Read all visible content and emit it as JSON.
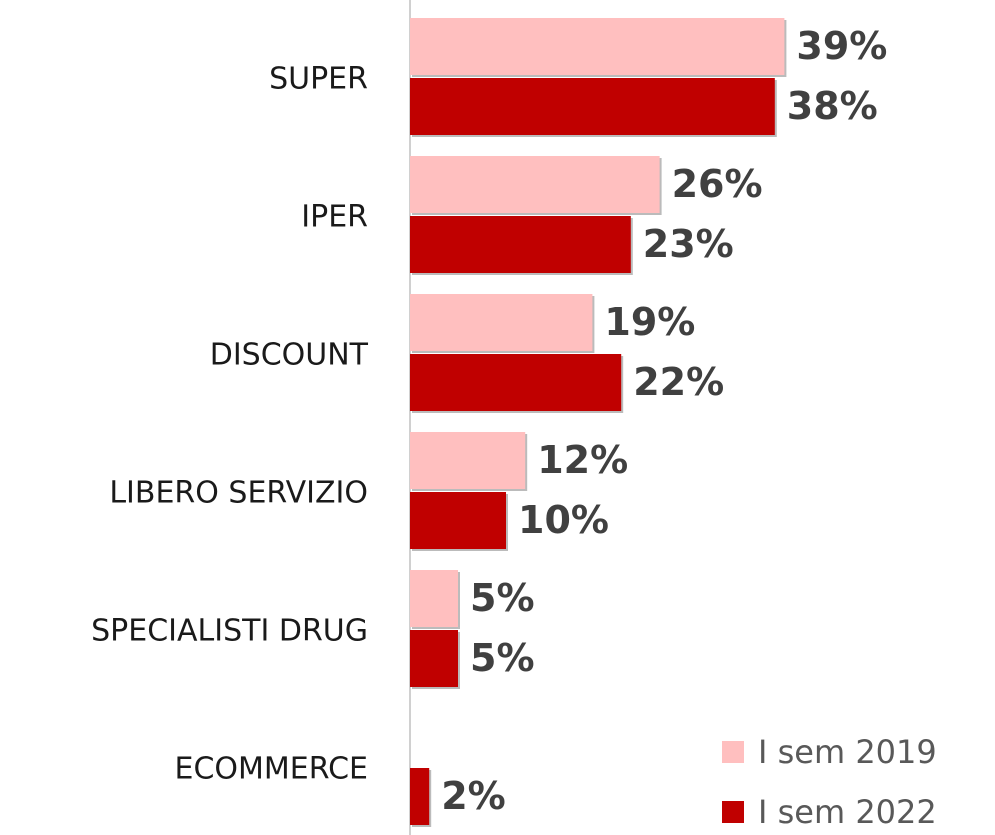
{
  "chart_data": {
    "type": "hbar",
    "categories": [
      "SUPER",
      "IPER",
      "DISCOUNT",
      "LIBERO SERVIZIO",
      "SPECIALISTI DRUG",
      "ECOMMERCE"
    ],
    "series": [
      {
        "name": "I sem 2019",
        "color": "#ffbfbf",
        "values": [
          39,
          26,
          19,
          12,
          5,
          null
        ],
        "value_labels": [
          "39%",
          "26%",
          "19%",
          "12%",
          "5%",
          null
        ]
      },
      {
        "name": "I sem 2022",
        "color": "#c00000",
        "values": [
          38,
          23,
          22,
          10,
          5,
          2
        ],
        "value_labels": [
          "38%",
          "23%",
          "22%",
          "10%",
          "5%",
          "2%"
        ]
      }
    ],
    "legend": "bottom-right"
  }
}
